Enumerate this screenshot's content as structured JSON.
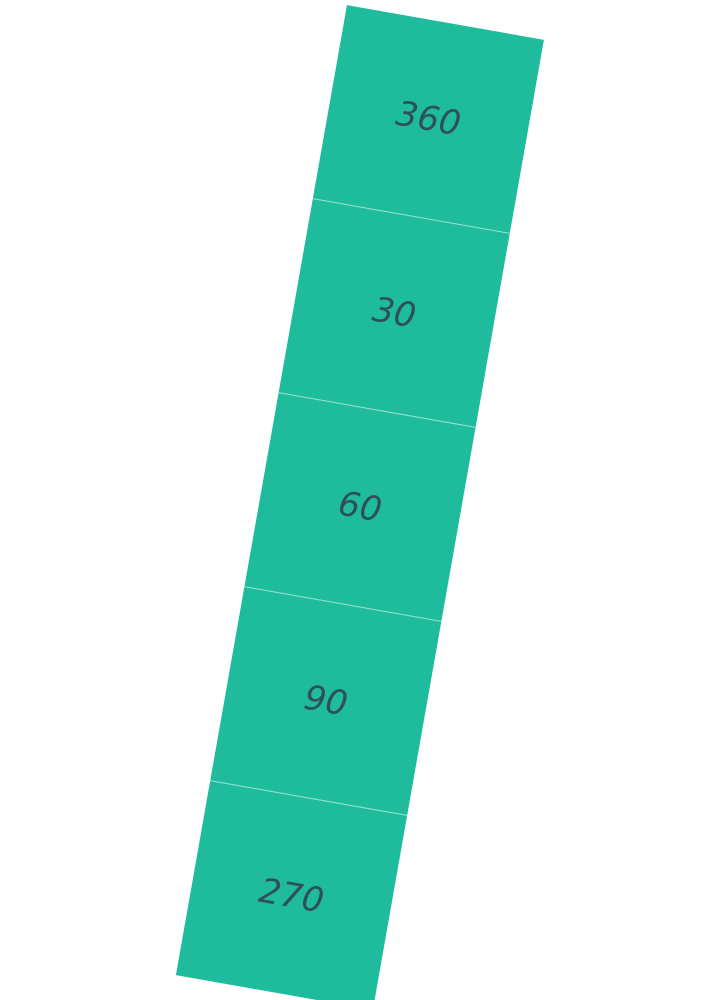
{
  "colors": {
    "cell_fill": "#1ebc9c",
    "label_color": "#2f4f5f",
    "background": "#ffffff"
  },
  "cells": [
    {
      "label": "360"
    },
    {
      "label": "30"
    },
    {
      "label": "60"
    },
    {
      "label": "90"
    },
    {
      "label": "270"
    }
  ]
}
